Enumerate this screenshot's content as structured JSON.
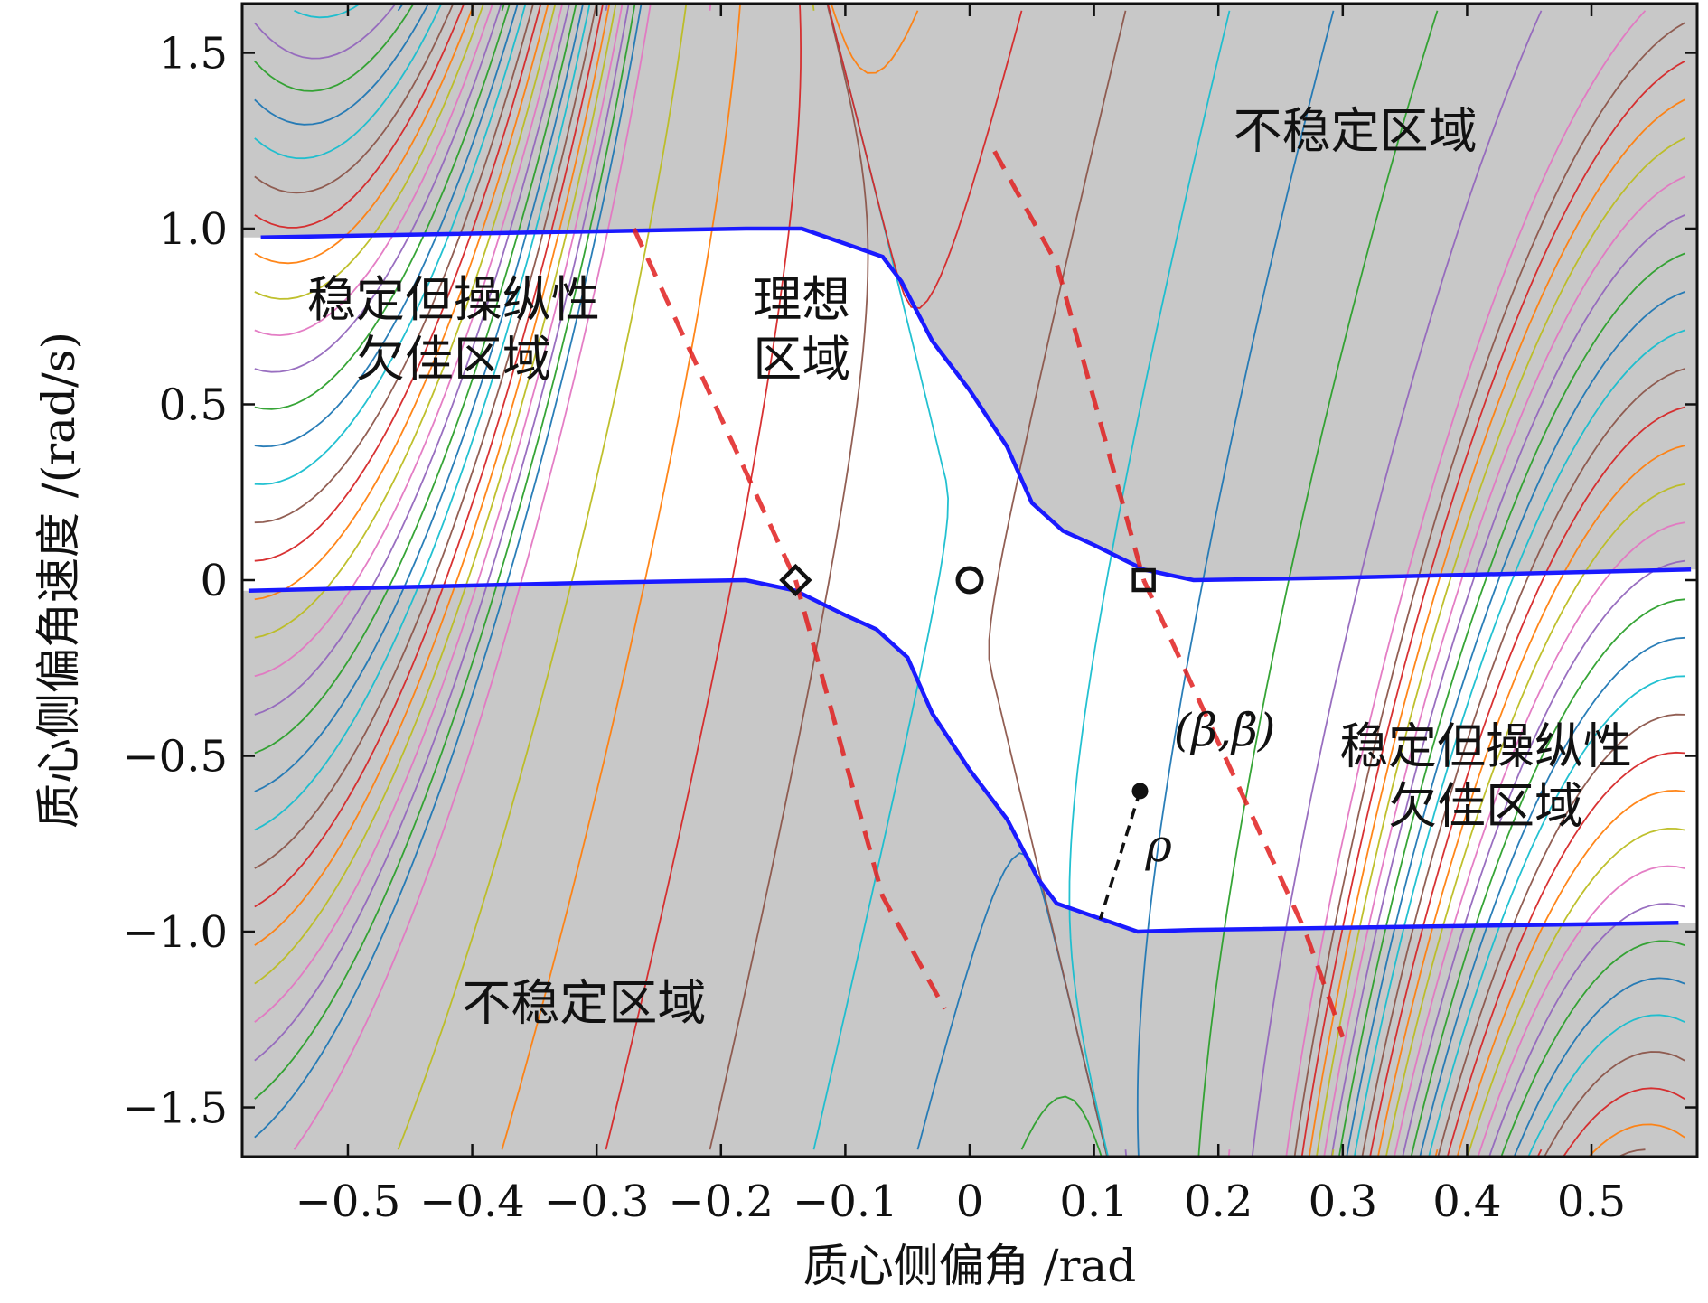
{
  "chart_data": {
    "type": "line",
    "subtype": "phase-portrait",
    "xlabel": "质心侧偏角 /rad",
    "ylabel": "质心侧偏角速度 /(rad/s)",
    "xlim": [
      -0.585,
      0.585
    ],
    "ylim": [
      -1.64,
      1.64
    ],
    "xticks": [
      -0.5,
      -0.4,
      -0.3,
      -0.2,
      -0.1,
      0,
      0.1,
      0.2,
      0.3,
      0.4,
      0.5
    ],
    "xtick_labels": [
      "−0.5",
      "−0.4",
      "−0.3",
      "−0.2",
      "−0.1",
      "0",
      "0.1",
      "0.2",
      "0.3",
      "0.4",
      "0.5"
    ],
    "yticks": [
      1.5,
      1.0,
      0.5,
      0,
      -0.5,
      -1.0,
      -1.5
    ],
    "ytick_labels": [
      "1.5",
      "1.0",
      "0.5",
      "0",
      "−0.5",
      "−1.0",
      "−1.5"
    ],
    "grid": false,
    "region_labels": [
      {
        "id": "unstable-top",
        "lines": [
          "不稳定区域"
        ],
        "x": 0.31,
        "y": 1.23
      },
      {
        "id": "stable-poor-left",
        "lines": [
          "稳定但操纵性",
          "欠佳区域"
        ],
        "x": -0.415,
        "y": 0.75
      },
      {
        "id": "ideal",
        "lines": [
          "理想",
          "区域"
        ],
        "x": -0.135,
        "y": 0.75
      },
      {
        "id": "stable-poor-right",
        "lines": [
          "稳定但操纵性",
          "欠佳区域"
        ],
        "x": 0.415,
        "y": -0.52
      },
      {
        "id": "unstable-bottom",
        "lines": [
          "不稳定区域"
        ],
        "x": -0.31,
        "y": -1.25
      }
    ],
    "stable_boundary": {
      "upper": [
        [
          -0.57,
          0.975
        ],
        [
          -0.18,
          1.0
        ],
        [
          -0.135,
          1.0
        ],
        [
          -0.07,
          0.92
        ],
        [
          -0.055,
          0.85
        ],
        [
          -0.03,
          0.68
        ],
        [
          0.0,
          0.54
        ],
        [
          0.03,
          0.38
        ],
        [
          0.05,
          0.22
        ],
        [
          0.075,
          0.14
        ],
        [
          0.1,
          0.1
        ],
        [
          0.14,
          0.03
        ],
        [
          0.18,
          0.0
        ],
        [
          0.3,
          0.007
        ],
        [
          0.58,
          0.03
        ]
      ],
      "lower": [
        [
          -0.58,
          -0.03
        ],
        [
          -0.3,
          -0.007
        ],
        [
          -0.18,
          0.0
        ],
        [
          -0.14,
          -0.03
        ],
        [
          -0.1,
          -0.1
        ],
        [
          -0.075,
          -0.14
        ],
        [
          -0.05,
          -0.22
        ],
        [
          -0.03,
          -0.38
        ],
        [
          0.0,
          -0.54
        ],
        [
          0.03,
          -0.68
        ],
        [
          0.055,
          -0.85
        ],
        [
          0.07,
          -0.92
        ],
        [
          0.135,
          -1.0
        ],
        [
          0.18,
          -0.995
        ],
        [
          0.57,
          -0.975
        ]
      ]
    },
    "dashed_lines": [
      {
        "id": "left-upper",
        "points": [
          [
            -0.27,
            1.0
          ],
          [
            -0.14,
            0.0
          ]
        ]
      },
      {
        "id": "left-lower",
        "points": [
          [
            -0.14,
            0.0
          ],
          [
            -0.07,
            -0.9
          ],
          [
            -0.02,
            -1.22
          ]
        ]
      },
      {
        "id": "right-upper",
        "points": [
          [
            0.02,
            1.22
          ],
          [
            0.07,
            0.9
          ],
          [
            0.14,
            0.0
          ]
        ]
      },
      {
        "id": "right-lower",
        "points": [
          [
            0.14,
            0.0
          ],
          [
            0.27,
            -1.0
          ],
          [
            0.3,
            -1.3
          ]
        ]
      }
    ],
    "markers": [
      {
        "id": "origin",
        "shape": "circle",
        "x": 0.0,
        "y": 0.0
      },
      {
        "id": "left-saddle",
        "shape": "diamond",
        "x": -0.14,
        "y": 0.0
      },
      {
        "id": "right-saddle",
        "shape": "square",
        "x": 0.14,
        "y": 0.0
      },
      {
        "id": "sample-point",
        "shape": "dot",
        "x": 0.137,
        "y": -0.6
      }
    ],
    "distance_segment": {
      "from": [
        0.137,
        -0.6
      ],
      "to": [
        0.105,
        -0.965
      ]
    },
    "annotations": [
      {
        "id": "point-label",
        "text": "(β,β̇)",
        "x": 0.205,
        "y": -0.47
      },
      {
        "id": "rho-label",
        "text": "ρ",
        "x": 0.152,
        "y": -0.8
      }
    ],
    "trajectory_palette": [
      "#1f77b4",
      "#ff7f0e",
      "#2ca02c",
      "#d62728",
      "#9467bd",
      "#8c564b",
      "#e377c2",
      "#17becf",
      "#bcbd22"
    ]
  }
}
